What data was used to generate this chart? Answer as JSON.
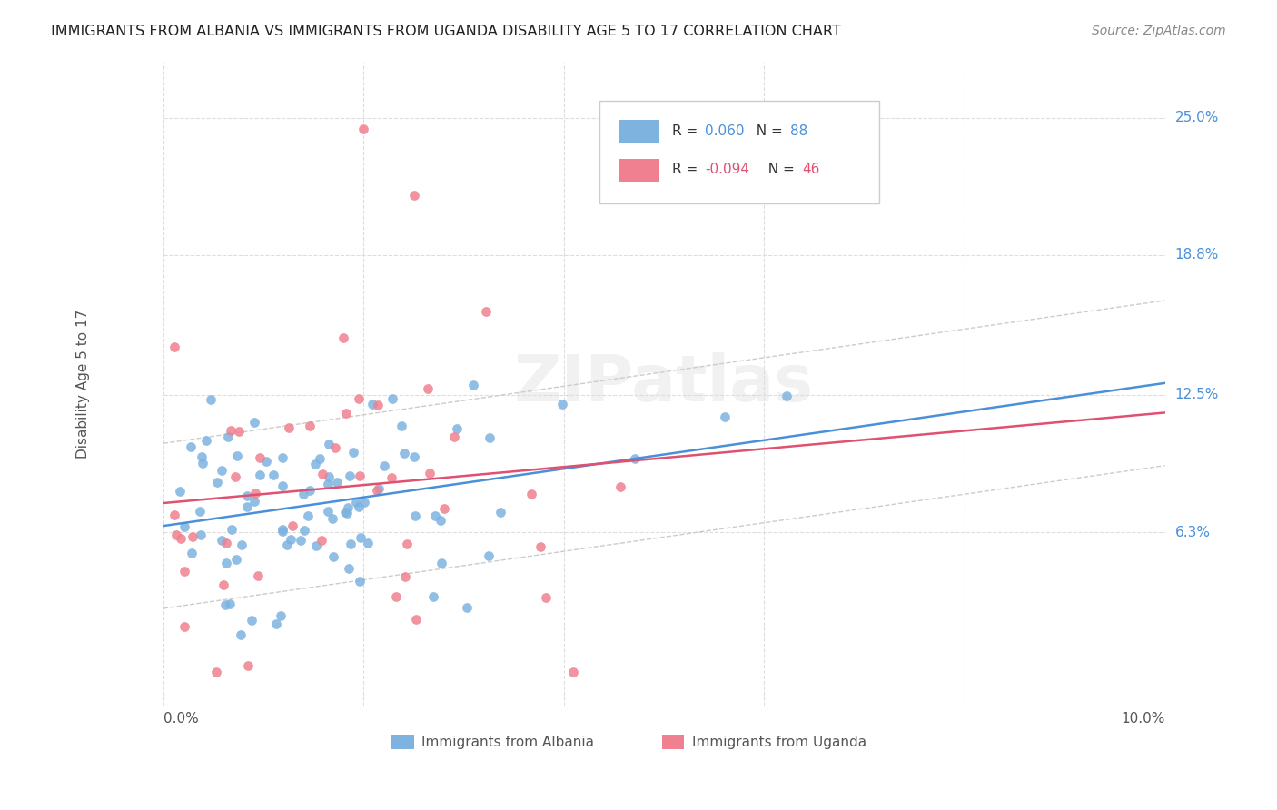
{
  "title": "IMMIGRANTS FROM ALBANIA VS IMMIGRANTS FROM UGANDA DISABILITY AGE 5 TO 17 CORRELATION CHART",
  "source": "Source: ZipAtlas.com",
  "ylabel": "Disability Age 5 to 17",
  "ytick_labels": [
    "6.3%",
    "12.5%",
    "18.8%",
    "25.0%"
  ],
  "ytick_values": [
    0.063,
    0.125,
    0.188,
    0.25
  ],
  "xlim": [
    0.0,
    0.1
  ],
  "ylim": [
    -0.015,
    0.275
  ],
  "albania_color": "#7eb3e0",
  "uganda_color": "#f08090",
  "trendline_albania_color": "#4a90d9",
  "trendline_uganda_color": "#e05070",
  "ci_color": "#cccccc",
  "watermark_color": "#e8e8e8",
  "grid_color": "#dddddd",
  "background_color": "#ffffff",
  "ytick_label_color": "#4a90d9",
  "axis_label_color": "#555555",
  "title_color": "#222222",
  "source_color": "#888888"
}
